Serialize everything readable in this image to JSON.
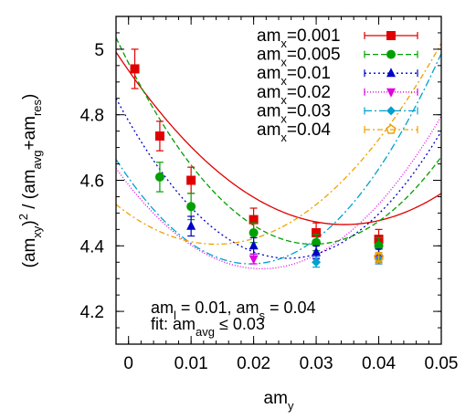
{
  "chart_data": {
    "type": "scatter",
    "ylabel": {
      "parts": [
        {
          "t": "(am",
          "s": ""
        },
        {
          "t": "xy",
          "s": "sub"
        },
        {
          "t": ")",
          "s": ""
        },
        {
          "t": "2",
          "s": "sup"
        },
        {
          "t": " / (am",
          "s": ""
        },
        {
          "t": "avg",
          "s": "sub"
        },
        {
          "t": "+am",
          "s": ""
        },
        {
          "t": "res",
          "s": "sub"
        },
        {
          "t": ")",
          "s": ""
        }
      ]
    },
    "xlabel": {
      "parts": [
        {
          "t": "am",
          "s": ""
        },
        {
          "t": "y",
          "s": "sub"
        }
      ]
    },
    "xlim": [
      -0.002,
      0.05
    ],
    "ylim": [
      4.1,
      5.1
    ],
    "xticks": [
      0,
      0.01,
      0.02,
      0.03,
      0.04,
      0.05
    ],
    "xtick_labels": [
      "0",
      "0.01",
      "0.02",
      "0.03",
      "0.04",
      "0.05"
    ],
    "yticks": [
      4.2,
      4.4,
      4.6,
      4.8,
      5
    ],
    "ytick_labels": [
      "4.2",
      "4.4",
      "4.6",
      "4.8",
      "5"
    ],
    "legend_position": "top-right",
    "series": [
      {
        "label_main": "am",
        "label_sub": "x",
        "label_value": "=0.001",
        "color": "#e00000",
        "marker": "square",
        "dash": "",
        "x": [
          0.001,
          0.005,
          0.01,
          0.02,
          0.03,
          0.04
        ],
        "y": [
          4.94,
          4.735,
          4.6,
          4.48,
          4.44,
          4.42
        ],
        "err": [
          0.06,
          0.045,
          0.04,
          0.035,
          0.03,
          0.03
        ],
        "fit": {
          "vertex_x": 0.0345,
          "vertex_y": 4.465,
          "a": 395
        }
      },
      {
        "label_main": "am",
        "label_sub": "x",
        "label_value": "=0.005",
        "color": "#00a000",
        "marker": "circle",
        "dash": "6,3",
        "x": [
          0.005,
          0.01,
          0.02,
          0.03,
          0.04
        ],
        "y": [
          4.61,
          4.52,
          4.44,
          4.41,
          4.4
        ],
        "err": [
          0.045,
          0.04,
          0.03,
          0.025,
          0.025
        ],
        "fit": {
          "vertex_x": 0.0295,
          "vertex_y": 4.405,
          "a": 635
        }
      },
      {
        "label_main": "am",
        "label_sub": "x",
        "label_value": "=0.01",
        "color": "#0000c8",
        "marker": "triangle-up",
        "dash": "2,3",
        "x": [
          0.01,
          0.02,
          0.03,
          0.04
        ],
        "y": [
          4.46,
          4.4,
          4.38,
          4.37
        ],
        "err": [
          0.03,
          0.025,
          0.02,
          0.02
        ],
        "fit": {
          "vertex_x": 0.0255,
          "vertex_y": 4.362,
          "a": 645
        }
      },
      {
        "label_main": "am",
        "label_sub": "x",
        "label_value": "=0.02",
        "color": "#e000e0",
        "marker": "triangle-down",
        "dash": "1,2",
        "x": [
          0.02,
          0.04
        ],
        "y": [
          4.36,
          4.36
        ],
        "err": [
          0.015,
          0.015
        ],
        "fit": {
          "vertex_x": 0.0213,
          "vertex_y": 4.33,
          "a": 565
        }
      },
      {
        "label_main": "am",
        "label_sub": "x",
        "label_value": "=0.03",
        "color": "#00a0d0",
        "marker": "diamond",
        "dash": "8,3,2,3",
        "x": [
          0.03,
          0.04
        ],
        "y": [
          4.35,
          4.36
        ],
        "err": [
          0.015,
          0.015
        ],
        "fit": {
          "vertex_x": 0.0195,
          "vertex_y": 4.345,
          "a": 690
        }
      },
      {
        "label_main": "am",
        "label_sub": "x",
        "label_value": "=0.04",
        "color": "#f0a000",
        "marker": "pentagon-open",
        "dash": "6,3,2,3",
        "x": [
          0.04
        ],
        "y": [
          4.365
        ],
        "err": [
          0.015
        ],
        "fit": {
          "vertex_x": 0.014,
          "vertex_y": 4.405,
          "a": 473
        }
      }
    ],
    "annotations": [
      {
        "parts": [
          {
            "t": "am",
            "s": ""
          },
          {
            "t": "l",
            "s": "sub"
          },
          {
            "t": " = 0.01, am",
            "s": ""
          },
          {
            "t": "s",
            "s": "sub"
          },
          {
            "t": " = 0.04",
            "s": ""
          }
        ]
      },
      {
        "parts": [
          {
            "t": "fit: am",
            "s": ""
          },
          {
            "t": "avg",
            "s": "sub"
          },
          {
            "t": " ≤ 0.03",
            "s": ""
          }
        ]
      }
    ]
  }
}
